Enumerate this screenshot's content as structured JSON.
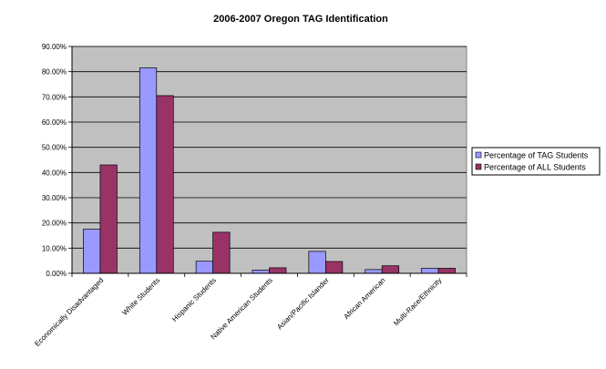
{
  "chart_data": {
    "type": "bar",
    "title": "2006-2007 Oregon TAG Identification",
    "xlabel": "",
    "ylabel": "",
    "categories": [
      "Economically Disadvantaged",
      "White Students",
      "Hispanic Students",
      "Native American Students",
      "Asian/Pacific Islander",
      "African American",
      "Multi-Race/Ethnicity"
    ],
    "series": [
      {
        "name": "Percentage of TAG Students",
        "color": "#9999ff",
        "values": [
          17.5,
          81.5,
          4.8,
          1.3,
          8.7,
          1.5,
          2.0
        ]
      },
      {
        "name": "Percentage of ALL Students",
        "color": "#993366",
        "values": [
          43.0,
          70.5,
          16.3,
          2.2,
          4.7,
          3.0,
          2.0
        ]
      }
    ],
    "yticks": [
      "0.00%",
      "10.00%",
      "20.00%",
      "30.00%",
      "40.00%",
      "50.00%",
      "60.00%",
      "70.00%",
      "80.00%",
      "90.00%"
    ],
    "ylim": [
      0,
      90
    ],
    "ytick_step": 10,
    "grid": true,
    "plot_background": "#c0c0c0",
    "legend_position": "right"
  }
}
